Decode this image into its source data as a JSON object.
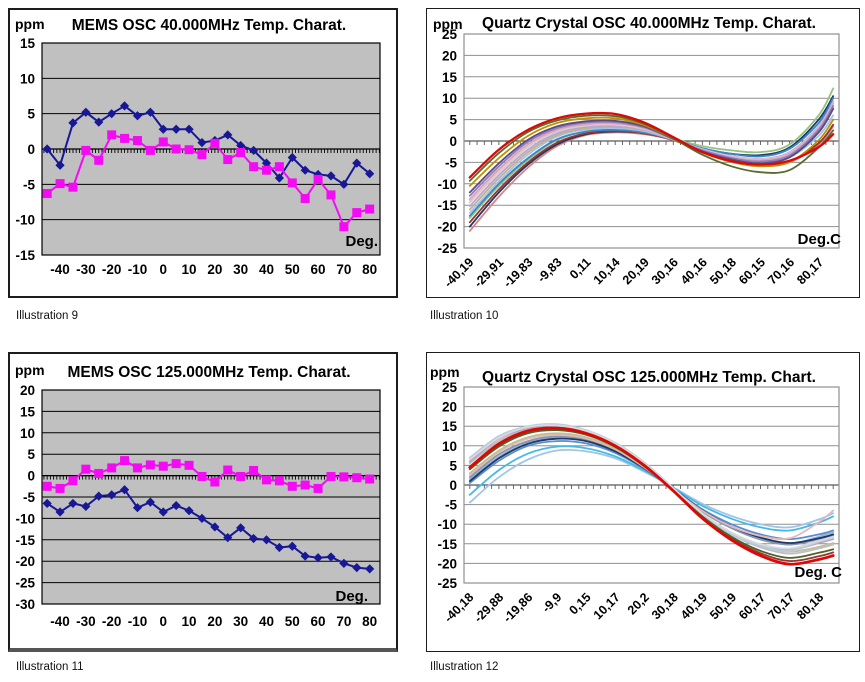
{
  "captions": [
    "Illustration 9",
    "Illustration 10",
    "Illustration 11",
    "Illustration 12"
  ],
  "chart_data": [
    {
      "id": "mems-osc-40mhz",
      "type": "line",
      "title": "MEMS OSC 40.000MHz Temp. Charat.",
      "y_unit_label": "ppm",
      "x_unit_label": "Deg.",
      "ylim": [
        -15,
        15
      ],
      "ytick_step": 5,
      "xlim": [
        -47,
        84
      ],
      "xticks": [
        -40,
        -30,
        -20,
        -10,
        0,
        10,
        20,
        30,
        40,
        50,
        60,
        70,
        80
      ],
      "plot_bg": "#c0c0c0",
      "x": [
        -45,
        -40,
        -35,
        -30,
        -25,
        -20,
        -15,
        -10,
        -5,
        0,
        5,
        10,
        15,
        20,
        25,
        30,
        35,
        40,
        45,
        50,
        55,
        60,
        65,
        70,
        75,
        80
      ],
      "series": [
        {
          "marker": "diamond",
          "color": "#181896",
          "values": [
            0,
            -2.3,
            3.7,
            5.2,
            3.8,
            5,
            6.1,
            4.7,
            5.2,
            2.8,
            2.8,
            2.8,
            0.9,
            1.2,
            2,
            0.5,
            -0.2,
            -2,
            -4.1,
            -1.2,
            -3,
            -3.6,
            -3.8,
            -5,
            -2,
            -3.5
          ]
        },
        {
          "marker": "square",
          "color": "#f30cf3",
          "values": [
            -6.3,
            -4.9,
            -5.4,
            -0.2,
            -1.6,
            2,
            1.5,
            1.2,
            -0.2,
            1,
            0,
            -0.1,
            -0.8,
            0.8,
            -1.5,
            -0.5,
            -2.5,
            -3,
            -2.5,
            -4.8,
            -7,
            -4.3,
            -6.5,
            -11,
            -9,
            -8.5
          ]
        }
      ]
    },
    {
      "id": "quartz-osc-40mhz",
      "type": "curves",
      "title": "Quartz Crystal OSC 40.000MHz Temp. Charat.",
      "y_unit_label": "ppm",
      "x_unit_label": "Deg.C",
      "ylim": [
        -25,
        25
      ],
      "ytick_step": 5,
      "xlim": [
        -42,
        87
      ],
      "xtick_values": [
        -40.19,
        -29.91,
        -19.83,
        -9.83,
        0.11,
        10.14,
        20.19,
        30.16,
        40.16,
        50.18,
        60.15,
        70.16,
        80.17
      ],
      "xtick_labels": [
        "-40,19",
        "-29,91",
        "-19,83",
        "-9,83",
        "0,11",
        "10,14",
        "20,19",
        "30,16",
        "40,16",
        "50,18",
        "60,15",
        "70,16",
        "80,17"
      ],
      "x_nodes": [
        -40,
        -30,
        -20,
        -10,
        0,
        10,
        20,
        30,
        40,
        50,
        60,
        70,
        80,
        85
      ],
      "series": [
        {
          "color": "#e08080",
          "values": [
            -21,
            -13,
            -6.2,
            -1.2,
            1.4,
            2,
            1.6,
            0.2,
            -2.4,
            -4.5,
            -5.8,
            -5,
            -0.8,
            3.4
          ]
        },
        {
          "color": "#1f3864",
          "values": [
            -20,
            -12,
            -5.5,
            -0.8,
            1.6,
            2.2,
            1.8,
            0.3,
            -1.8,
            -3,
            -3.3,
            -1.5,
            5,
            10.5
          ]
        },
        {
          "color": "#943634",
          "values": [
            -19,
            -11.3,
            -5,
            -0.4,
            1.8,
            2.3,
            1.8,
            0.2,
            -2.3,
            -4.3,
            -5.6,
            -4.8,
            -0.5,
            3.8
          ]
        },
        {
          "color": "#93c47d",
          "values": [
            -18,
            -10.5,
            -4.4,
            0.2,
            2.3,
            2.7,
            2,
            0.5,
            -1.2,
            -2.2,
            -2.6,
            -0.8,
            6,
            12.3
          ]
        },
        {
          "color": "#3d85c6",
          "values": [
            -17.5,
            -10,
            -4,
            0.4,
            2.2,
            2.6,
            2,
            0.3,
            -1.7,
            -3,
            -3.6,
            -1.8,
            4.2,
            10
          ]
        },
        {
          "color": "#9fc5e8",
          "values": [
            -16.8,
            -9.4,
            -3.2,
            1,
            2.7,
            3,
            2.3,
            0.3,
            -2.1,
            -3.9,
            -4.9,
            -3.8,
            1.2,
            6
          ]
        },
        {
          "color": "#c9ad8c",
          "values": [
            -16,
            -8.7,
            -2.6,
            1.4,
            3,
            3.3,
            2.5,
            0.3,
            -2,
            -3.7,
            -4.6,
            -3.2,
            2.4,
            7.8
          ]
        },
        {
          "color": "#b4a7d6",
          "values": [
            -15.2,
            -8,
            -2,
            1.8,
            3.3,
            3.5,
            2.6,
            0.4,
            -1.9,
            -3.5,
            -4.2,
            -2.6,
            3.4,
            9.2
          ]
        },
        {
          "color": "#d0cece",
          "values": [
            -14.4,
            -7.3,
            -1.4,
            2.2,
            3.6,
            3.8,
            2.8,
            0.4,
            -2,
            -3.6,
            -4.3,
            -2.8,
            3.2,
            9
          ]
        },
        {
          "color": "#f2c3c3",
          "values": [
            -14,
            -7,
            -1.1,
            2.4,
            3.8,
            3.9,
            2.9,
            0.4,
            -2,
            -3.7,
            -4.4,
            -2.9,
            3.1,
            8.9
          ]
        },
        {
          "color": "#d5a6bd",
          "values": [
            -13.6,
            -6.6,
            -0.8,
            2.6,
            3.9,
            4.1,
            3,
            0.4,
            -2.1,
            -3.8,
            -4.5,
            -3,
            3,
            8.8
          ]
        },
        {
          "color": "#8e7cc3",
          "values": [
            -12.8,
            -5.9,
            -0.2,
            3,
            4.3,
            4.4,
            3.2,
            0.5,
            -2.2,
            -4,
            -4.8,
            -3.4,
            2.6,
            8.2
          ]
        },
        {
          "color": "#60497b",
          "values": [
            -12,
            -5.2,
            0.3,
            3.4,
            4.6,
            4.7,
            3.4,
            0.5,
            -2.4,
            -4.3,
            -5.2,
            -3.8,
            2,
            7.5
          ]
        },
        {
          "color": "#bf9000",
          "values": [
            -10.5,
            -4,
            1.2,
            4.2,
            5.3,
            5.3,
            3.7,
            0.6,
            -2.7,
            -4.9,
            -5.9,
            -4.9,
            0.2,
            5
          ]
        },
        {
          "color": "#5a6b2f",
          "values": [
            -9.3,
            -2.8,
            2.1,
            4.8,
            5.9,
            5.8,
            4,
            0.6,
            -3.2,
            -5.9,
            -7.3,
            -6.8,
            -1.5,
            2.5
          ]
        },
        {
          "color": "#dd0806",
          "width": 2.3,
          "values": [
            -8.5,
            -2,
            2.6,
            5.3,
            6.4,
            6.3,
            4.3,
            0.9,
            -2.6,
            -4.7,
            -5.5,
            -4.6,
            -1.4,
            1.6
          ]
        }
      ]
    },
    {
      "id": "mems-osc-125mhz",
      "type": "line",
      "title": "MEMS OSC 125.000MHz Temp. Charat.",
      "y_unit_label": "ppm",
      "x_unit_label": "Deg.",
      "ylim": [
        -30,
        20
      ],
      "ytick_step": 5,
      "xlim": [
        -47,
        84
      ],
      "xticks": [
        -40,
        -30,
        -20,
        -10,
        0,
        10,
        20,
        30,
        40,
        50,
        60,
        70,
        80
      ],
      "plot_bg": "#c0c0c0",
      "x": [
        -45,
        -40,
        -35,
        -30,
        -25,
        -20,
        -15,
        -10,
        -5,
        0,
        5,
        10,
        15,
        20,
        25,
        30,
        35,
        40,
        45,
        50,
        55,
        60,
        65,
        70,
        75,
        80
      ],
      "series": [
        {
          "marker": "diamond",
          "color": "#181896",
          "values": [
            -6.5,
            -8.5,
            -6.5,
            -7.2,
            -4.8,
            -4.5,
            -3.3,
            -7.5,
            -6.2,
            -8.5,
            -7,
            -8.2,
            -10,
            -12,
            -14.5,
            -12.2,
            -14.7,
            -15,
            -16.8,
            -16.5,
            -18.8,
            -19.2,
            -19,
            -20.5,
            -21.5,
            -21.8
          ]
        },
        {
          "marker": "square",
          "color": "#f30cf3",
          "values": [
            -2.5,
            -3,
            -1.2,
            1.5,
            0.5,
            1.8,
            3.5,
            1.8,
            2.5,
            2.2,
            2.8,
            2.4,
            -0.2,
            -1.5,
            1.3,
            -0.2,
            1.2,
            -1,
            -1.2,
            -2.5,
            -2.2,
            -3,
            -0.2,
            -0.3,
            -0.5,
            -0.8
          ]
        }
      ]
    },
    {
      "id": "quartz-osc-125mhz",
      "type": "curves",
      "title": "Quartz Crystal OSC 125.000MHz Temp. Chart.",
      "y_unit_label": "ppm",
      "x_unit_label": "Deg. C",
      "ylim": [
        -25,
        25
      ],
      "ytick_step": 5,
      "xlim": [
        -42,
        87
      ],
      "xtick_values": [
        -40.18,
        -29.88,
        -19.86,
        -9.9,
        0.15,
        10.17,
        20.2,
        30.18,
        40.19,
        50.19,
        60.17,
        70.17,
        80.18
      ],
      "xtick_labels": [
        "-40,18",
        "-29,88",
        "-19,86",
        "-9,9",
        "0,15",
        "10,17",
        "20,2",
        "30,18",
        "40,19",
        "50,19",
        "60,17",
        "70,17",
        "80,18"
      ],
      "x_nodes": [
        -40,
        -30,
        -20,
        -10,
        0,
        10,
        20,
        30,
        40,
        50,
        60,
        70,
        80,
        85
      ],
      "series": [
        {
          "color": "#9fc5e8",
          "values": [
            -4.5,
            2,
            6.5,
            8.8,
            8.6,
            6.8,
            3.4,
            -0.6,
            -4.8,
            -7.9,
            -10,
            -10.8,
            -8.8,
            -7.2
          ]
        },
        {
          "color": "#45b9e6",
          "values": [
            -2.5,
            3.8,
            8,
            9.8,
            9.4,
            7.3,
            3.7,
            -0.7,
            -5.3,
            -8.6,
            -10.8,
            -11.6,
            -9.6,
            -8
          ]
        },
        {
          "color": "#558ed5",
          "values": [
            0.5,
            6.2,
            10,
            11.2,
            10.6,
            8.2,
            4.1,
            -0.9,
            -6.2,
            -10,
            -12.6,
            -13.8,
            -12.6,
            -11.6
          ]
        },
        {
          "color": "#95b3d7",
          "values": [
            1.5,
            7.2,
            10.8,
            12,
            11.4,
            8.8,
            4.4,
            -1,
            -6.6,
            -10.8,
            -13.6,
            -15,
            -13.2,
            -12
          ]
        },
        {
          "color": "#8496b0",
          "values": [
            2,
            7.8,
            11.2,
            12.4,
            11.6,
            8.9,
            4.4,
            -1,
            -6.8,
            -11,
            -13.9,
            -15.2,
            -13.8,
            -12.8
          ]
        },
        {
          "color": "#1f3864",
          "values": [
            1,
            6.8,
            10.5,
            11.8,
            11.2,
            8.6,
            4.3,
            -1,
            -6.5,
            -10.6,
            -13.4,
            -14.8,
            -13.6,
            -12.6
          ]
        },
        {
          "color": "#e6b9b8",
          "values": [
            2.5,
            8.4,
            11.8,
            12.8,
            11.9,
            9.1,
            4.5,
            -1.1,
            -6.6,
            -10.6,
            -13,
            -13.6,
            -9.5,
            -6.5
          ]
        },
        {
          "color": "#c4bd97",
          "values": [
            3,
            8.8,
            12.2,
            13.2,
            12.2,
            9.3,
            4.6,
            -1.3,
            -7.6,
            -12.4,
            -15.5,
            -17,
            -15.8,
            -14.8
          ]
        },
        {
          "color": "#bfbfbf",
          "values": [
            5.5,
            11.2,
            14.2,
            14.8,
            13.4,
            10.2,
            5.3,
            -1,
            -7.6,
            -12.6,
            -15.9,
            -17.5,
            -16.2,
            -15.2
          ]
        },
        {
          "color": "#b3a2c7",
          "values": [
            6,
            11.8,
            14.5,
            15,
            13.6,
            10.4,
            5.5,
            -0.9,
            -7.4,
            -12.3,
            -15.4,
            -16.6,
            -14.8,
            -13.8
          ]
        },
        {
          "color": "#b8cce4",
          "values": [
            7,
            12.5,
            15,
            15.5,
            14,
            10.8,
            5.8,
            -0.8,
            -7.5,
            -12.5,
            -15.5,
            -16.8,
            -14.5,
            -13.5
          ]
        },
        {
          "color": "#d9d9d9",
          "values": [
            6.5,
            12,
            14.8,
            15.2,
            13.8,
            10.6,
            5.6,
            -0.9,
            -7.3,
            -12.1,
            -15.1,
            -16.2,
            -14.2,
            -13.2
          ]
        },
        {
          "color": "#943634",
          "values": [
            4.2,
            10,
            13.4,
            14.2,
            13,
            9.8,
            4.9,
            -1.5,
            -8.2,
            -13.6,
            -17.4,
            -19.4,
            -18.2,
            -17.2
          ]
        },
        {
          "color": "#4f6228",
          "values": [
            4,
            9.8,
            13.2,
            14,
            12.8,
            9.7,
            4.8,
            -1.4,
            -8,
            -13.2,
            -16.8,
            -18.6,
            -17.3,
            -16.4
          ]
        },
        {
          "color": "#dd0806",
          "width": 2.8,
          "values": [
            4.5,
            10.5,
            13.8,
            14.5,
            13.2,
            10,
            5,
            -1.5,
            -8.5,
            -14,
            -18,
            -20.2,
            -19,
            -18
          ]
        }
      ]
    }
  ]
}
